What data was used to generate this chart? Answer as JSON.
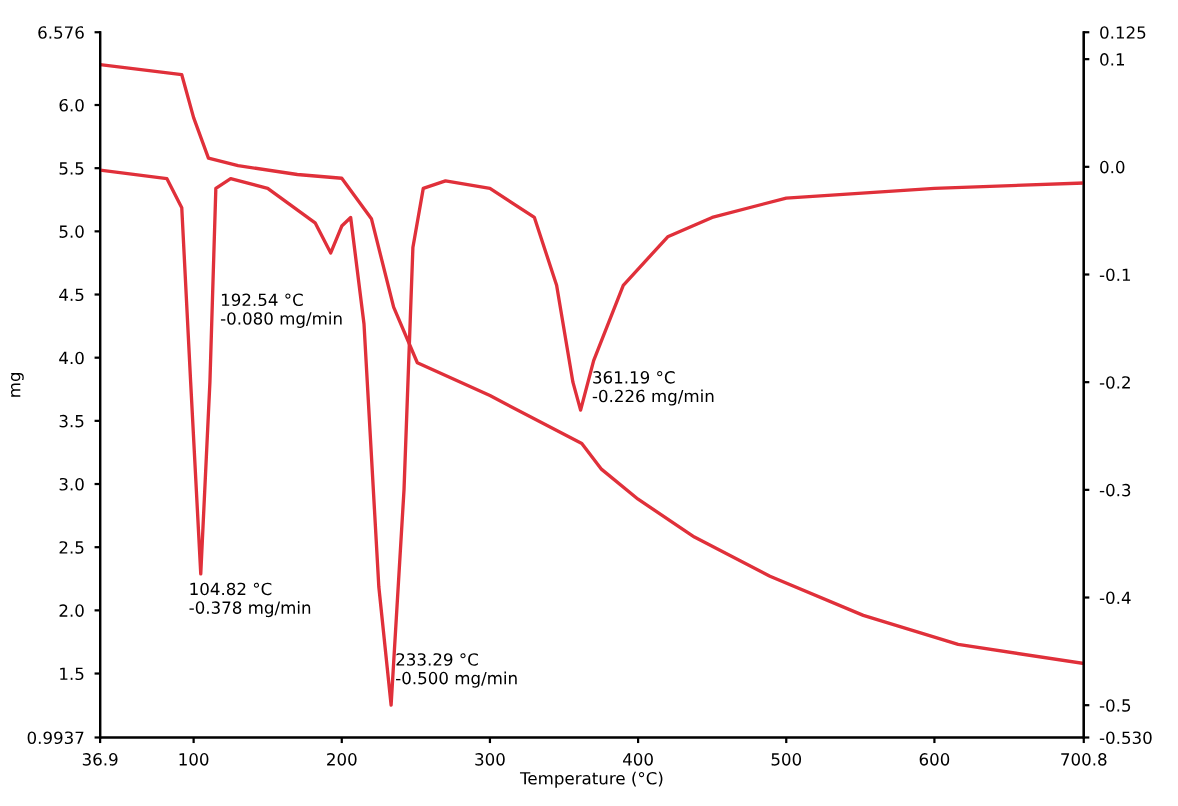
{
  "chart_data": {
    "type": "line",
    "xlabel": "Temperature (°C)",
    "ylabel": "mg",
    "xlim": [
      36.9,
      700.8
    ],
    "xticks": [
      36.9,
      100,
      200,
      300,
      400,
      500,
      600,
      700.8
    ],
    "ylim": [
      0.9937,
      6.576
    ],
    "yticks": [
      0.9937,
      1.5,
      {
        "value": 2,
        "label": "2.0"
      },
      2.5,
      {
        "value": 3,
        "label": "3.0"
      },
      3.5,
      {
        "value": 4,
        "label": "4.0"
      },
      4.5,
      {
        "value": 5,
        "label": "5.0"
      },
      5.5,
      {
        "value": 6,
        "label": "6.0"
      },
      6.576
    ],
    "y2lim": [
      -0.53,
      0.125
    ],
    "y2ticks": [
      {
        "value": -0.53,
        "label": "-0.530"
      },
      -0.5,
      -0.4,
      -0.3,
      -0.2,
      -0.1,
      {
        "value": 0,
        "label": "0.0"
      },
      0.1,
      0.125
    ],
    "grid": false,
    "legend": false,
    "line_style": "solid",
    "marker": "none",
    "series": [
      {
        "color": "#e0303a",
        "x": [
          36.9,
          92,
          100,
          110,
          130,
          170,
          200,
          220,
          235,
          251,
          300,
          362,
          375,
          400,
          438,
          489,
          552,
          616,
          700.8
        ],
        "values": [
          6.32,
          6.24,
          5.9,
          5.58,
          5.52,
          5.45,
          5.42,
          5.1,
          4.4,
          3.96,
          3.7,
          3.32,
          3.12,
          2.88,
          2.58,
          2.27,
          1.96,
          1.73,
          1.58
        ]
      },
      {
        "color": "#e0303a",
        "axis": "y2",
        "x": [
          36.9,
          82,
          92,
          98,
          104.82,
          111,
          115,
          125,
          150,
          182,
          192.54,
          200,
          206,
          215,
          225,
          233.29,
          242,
          248,
          255,
          270,
          300,
          330,
          345,
          356,
          361.19,
          370,
          390,
          420,
          450,
          500,
          600,
          700.8
        ],
        "values": [
          -0.003,
          -0.011,
          -0.038,
          -0.2,
          -0.378,
          -0.2,
          -0.02,
          -0.011,
          -0.02,
          -0.052,
          -0.08,
          -0.055,
          -0.047,
          -0.146,
          -0.39,
          -0.5,
          -0.3,
          -0.075,
          -0.02,
          -0.013,
          -0.02,
          -0.047,
          -0.11,
          -0.2,
          -0.226,
          -0.18,
          -0.11,
          -0.065,
          -0.047,
          -0.029,
          -0.02,
          -0.015
        ]
      }
    ],
    "annotations": [
      "104.82 °C\n-0.378 mg/min",
      "192.54 °C\n-0.080 mg/min",
      "233.29 °C\n-0.500 mg/min",
      "361.19 °C\n-0.226 mg/min"
    ]
  }
}
